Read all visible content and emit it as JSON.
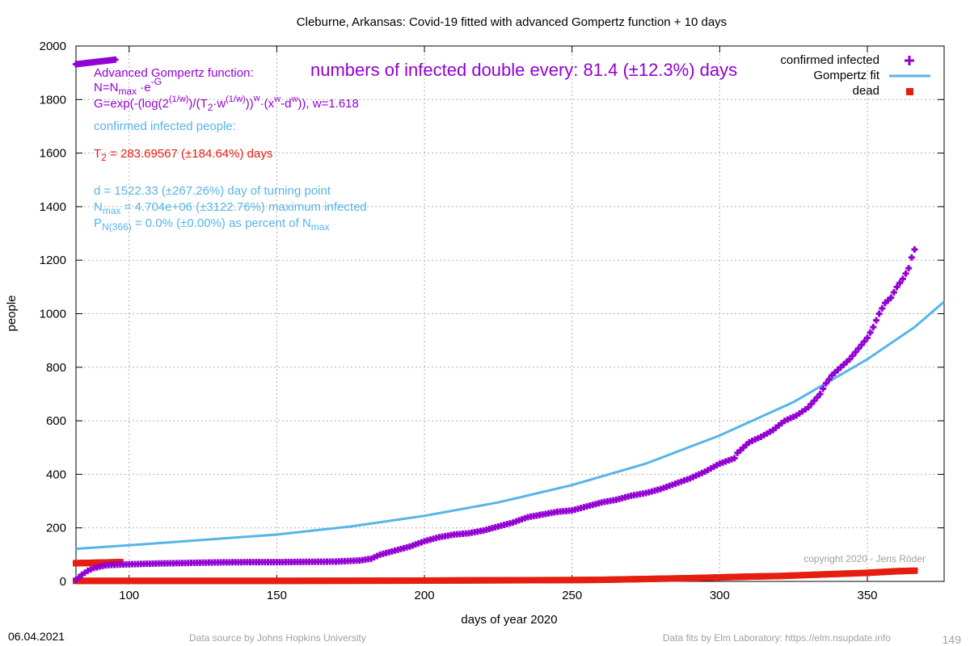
{
  "chart_data": {
    "type": "scatter",
    "title": "Cleburne,  Arkansas: Covid-19 fitted with advanced Gompertz function + 10 days",
    "xlabel": "days of year 2020",
    "ylabel": "people",
    "xlim": [
      82,
      376
    ],
    "ylim": [
      0,
      2000
    ],
    "x_ticks": [
      100,
      150,
      200,
      250,
      300,
      350
    ],
    "y_ticks": [
      0,
      200,
      400,
      600,
      800,
      1000,
      1200,
      1400,
      1600,
      1800,
      2000
    ],
    "grid": true,
    "legend_position": "top-right",
    "legend": [
      {
        "label": "confirmed infected",
        "color": "#9400d3"
      },
      {
        "label": "Gompertz fit",
        "color": "#56b4e9"
      },
      {
        "label": "dead",
        "color": "#e51e10"
      }
    ],
    "series": [
      {
        "name": "confirmed infected",
        "marker": "cross",
        "color": "#9400d3",
        "points": [
          [
            82,
            5
          ],
          [
            84,
            25
          ],
          [
            86,
            40
          ],
          [
            88,
            50
          ],
          [
            90,
            55
          ],
          [
            92,
            60
          ],
          [
            95,
            62
          ],
          [
            100,
            64
          ],
          [
            110,
            67
          ],
          [
            120,
            69
          ],
          [
            130,
            71
          ],
          [
            140,
            72
          ],
          [
            150,
            72
          ],
          [
            160,
            73
          ],
          [
            170,
            74
          ],
          [
            178,
            78
          ],
          [
            182,
            85
          ],
          [
            185,
            100
          ],
          [
            190,
            115
          ],
          [
            195,
            130
          ],
          [
            200,
            150
          ],
          [
            205,
            165
          ],
          [
            210,
            175
          ],
          [
            215,
            180
          ],
          [
            220,
            190
          ],
          [
            225,
            205
          ],
          [
            230,
            220
          ],
          [
            235,
            240
          ],
          [
            240,
            250
          ],
          [
            245,
            260
          ],
          [
            250,
            265
          ],
          [
            255,
            280
          ],
          [
            260,
            295
          ],
          [
            265,
            305
          ],
          [
            270,
            320
          ],
          [
            275,
            330
          ],
          [
            280,
            345
          ],
          [
            285,
            365
          ],
          [
            290,
            385
          ],
          [
            295,
            410
          ],
          [
            300,
            440
          ],
          [
            305,
            460
          ],
          [
            306,
            480
          ],
          [
            308,
            500
          ],
          [
            310,
            520
          ],
          [
            314,
            540
          ],
          [
            318,
            565
          ],
          [
            322,
            600
          ],
          [
            326,
            620
          ],
          [
            330,
            650
          ],
          [
            334,
            700
          ],
          [
            336,
            740
          ],
          [
            338,
            770
          ],
          [
            341,
            800
          ],
          [
            344,
            830
          ],
          [
            347,
            870
          ],
          [
            350,
            910
          ],
          [
            352,
            950
          ],
          [
            354,
            1000
          ],
          [
            356,
            1040
          ],
          [
            358,
            1060
          ],
          [
            360,
            1100
          ],
          [
            362,
            1130
          ],
          [
            364,
            1170
          ],
          [
            365,
            1210
          ],
          [
            366,
            1240
          ]
        ]
      },
      {
        "name": "Gompertz fit",
        "marker": "line",
        "color": "#56b4e9",
        "points": [
          [
            82,
            122
          ],
          [
            100,
            135
          ],
          [
            125,
            155
          ],
          [
            150,
            175
          ],
          [
            175,
            205
          ],
          [
            200,
            245
          ],
          [
            225,
            295
          ],
          [
            250,
            360
          ],
          [
            275,
            440
          ],
          [
            300,
            545
          ],
          [
            325,
            670
          ],
          [
            350,
            830
          ],
          [
            366,
            950
          ],
          [
            376,
            1045
          ]
        ]
      },
      {
        "name": "dead",
        "marker": "square",
        "color": "#e51e10",
        "points": [
          [
            82,
            2
          ],
          [
            100,
            2
          ],
          [
            150,
            2
          ],
          [
            200,
            3
          ],
          [
            220,
            4
          ],
          [
            250,
            5
          ],
          [
            260,
            6
          ],
          [
            270,
            8
          ],
          [
            280,
            10
          ],
          [
            290,
            12
          ],
          [
            300,
            15
          ],
          [
            310,
            18
          ],
          [
            320,
            20
          ],
          [
            330,
            24
          ],
          [
            340,
            28
          ],
          [
            350,
            32
          ],
          [
            360,
            38
          ],
          [
            366,
            40
          ]
        ]
      }
    ],
    "early_outliers": {
      "infected": {
        "x": [
          82,
          96
        ],
        "y": [
          1932,
          1950
        ]
      },
      "dead": {
        "x": [
          82,
          97
        ],
        "y": [
          68,
          72
        ]
      }
    }
  },
  "annotations": {
    "doubling": "numbers of infected double every: 81.4 (±12.3%) days",
    "formula_heading": "Advanced Gompertz function:",
    "formula_n_prefix": "N=N",
    "formula_n_sub": "max",
    "formula_n_mid": " ·e",
    "formula_n_sup": "-G",
    "formula_g_1": " G=exp(-(log(2",
    "formula_g_sup1": "(1/w)",
    "formula_g_2": ")/(T",
    "formula_g_sub": "2",
    "formula_g_3": "·w",
    "formula_g_sup2": "(1/w)",
    "formula_g_4": "))",
    "formula_g_sup3": "w",
    "formula_g_5": "·(x",
    "formula_g_sup4": "w",
    "formula_g_6": "-d",
    "formula_g_sup5": "w",
    "formula_g_7": ")), w=1.618",
    "confirmed_heading": "confirmed infected people:",
    "t2_prefix": "T",
    "t2_sub": "2",
    "t2_rest": " = 283.69567 (±184.64%) days",
    "d_line": "d = 1522.33 (±267.26%) day of turning point",
    "nmax_prefix": "N",
    "nmax_sub": "max",
    "nmax_rest": " = 4.704e+06 (±3122.76%) maximum infected",
    "p_prefix": "P",
    "p_sub": "N(366)",
    "p_rest": " = 0.0% (±0.00%) as percent of N",
    "p_sub2": "max",
    "copyright": "copyright 2020 - Jens Röder"
  },
  "footer": {
    "date": "06.04.2021",
    "source": "Data source by Johns Hopkins University",
    "fits": "Data fits by Elm Laboratory: https://elm.nsupdate.info",
    "page_number": "149"
  }
}
